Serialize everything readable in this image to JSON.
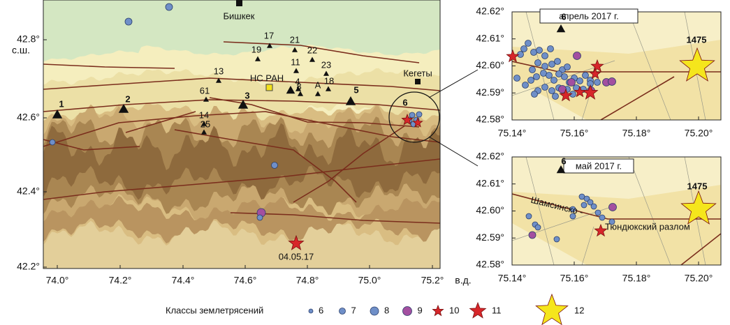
{
  "main_map": {
    "city": "Бишкек",
    "town": "Кегеты",
    "station_label": "НС РАН",
    "x_ticks": [
      "74.0°",
      "74.2°",
      "74.4°",
      "74.6°",
      "74.8°",
      "75.0°",
      "75.2°"
    ],
    "x_unit": "в.д.",
    "y_ticks": [
      "42.2°",
      "42.4°",
      "42.6°",
      "42.8°"
    ],
    "y_unit": "с.ш.",
    "stations_large": [
      "1",
      "2",
      "3",
      "5",
      "6"
    ],
    "stations_small": [
      "17",
      "21",
      "19",
      "22",
      "11",
      "13",
      "23",
      "4",
      "8",
      "18",
      "61",
      "А",
      "14",
      "25"
    ],
    "event_date": "04.05.17"
  },
  "inset_april": {
    "title": "апрель 2017 г.",
    "station": "6",
    "star_label": "1475",
    "y_ticks": [
      "42.62°",
      "42.61°",
      "42.60°",
      "42.59°",
      "42.58°"
    ],
    "x_ticks": [
      "75.14°",
      "75.16°",
      "75.18°",
      "75.20°"
    ]
  },
  "inset_may": {
    "title": "май 2017 г.",
    "station": "6",
    "star_label": "1475",
    "fault_label": [
      "Шамсинско -",
      "Тюндюкский  разлом"
    ],
    "y_ticks": [
      "42.62°",
      "42.61°",
      "42.60°",
      "42.59°",
      "42.58°"
    ],
    "x_ticks": [
      "75.14°",
      "75.16°",
      "75.18°",
      "75.20°"
    ]
  },
  "legend": {
    "title": "Классы землетрясений",
    "classes": [
      "6",
      "7",
      "8",
      "9",
      "10",
      "11",
      "12"
    ]
  }
}
